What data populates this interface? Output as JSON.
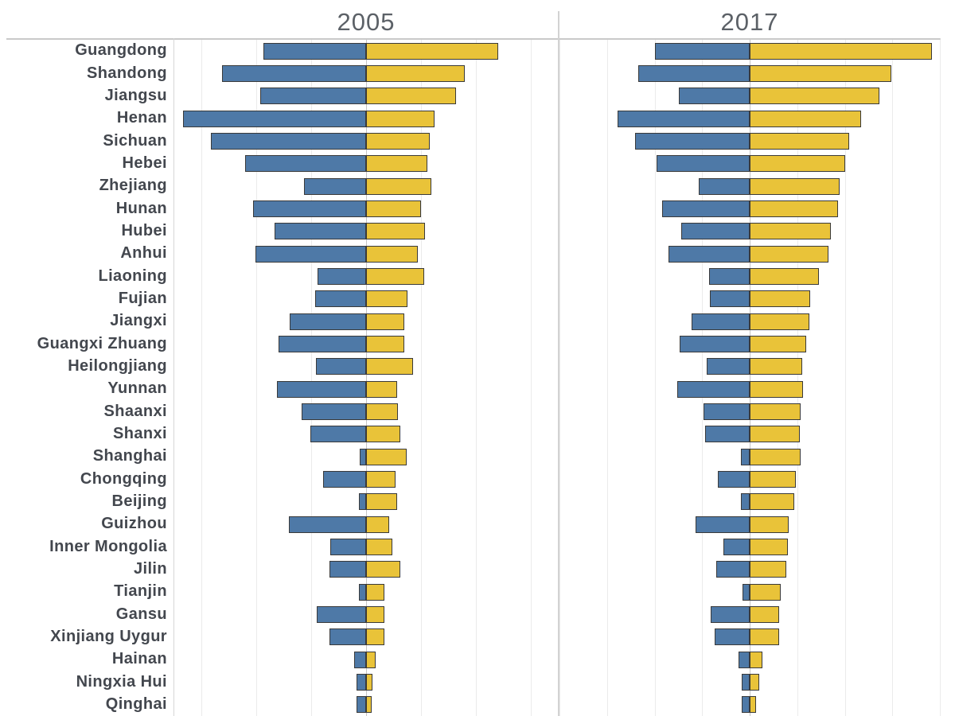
{
  "page": {
    "background": "#ffffff"
  },
  "styles": {
    "blue_bar_color": "#4e79a7",
    "yellow_bar_color": "#e9c339",
    "bar_border_color": "#3a3a3a",
    "gridline_color": "#ebebeb",
    "center_axis_color": "#c4c4c4",
    "frame_line_color": "#c9c9c9",
    "title_color": "#5c6167",
    "label_color": "#43474e"
  },
  "chart_data": {
    "type": "bar",
    "subtype": "diverging-horizontal-two-panel",
    "title": "",
    "xlabel": "",
    "ylabel": "",
    "grid": true,
    "legend": false,
    "axis_tick_labels_visible": false,
    "categories": [
      "Guangdong",
      "Shandong",
      "Jiangsu",
      "Henan",
      "Sichuan",
      "Hebei",
      "Zhejiang",
      "Hunan",
      "Hubei",
      "Anhui",
      "Liaoning",
      "Fujian",
      "Jiangxi",
      "Guangxi Zhuang",
      "Heilongjiang",
      "Yunnan",
      "Shaanxi",
      "Shanxi",
      "Shanghai",
      "Chongqing",
      "Beijing",
      "Guizhou",
      "Inner Mongolia",
      "Jilin",
      "Tianjin",
      "Gansu",
      "Xinjiang Uygur",
      "Hainan",
      "Ningxia Hui",
      "Qinghai"
    ],
    "panels": [
      {
        "title": "2005",
        "axis_max": 70,
        "gridline_step": 20,
        "series": [
          {
            "name": "blue_left",
            "direction": "left",
            "color": "#4e79a7",
            "values": [
              37.3,
              52.4,
              38.5,
              66.5,
              56.4,
              44.0,
              22.6,
              41.1,
              33.3,
              40.2,
              17.6,
              18.5,
              27.8,
              31.8,
              18.2,
              32.4,
              23.4,
              20.2,
              2.3,
              15.6,
              2.6,
              28.1,
              13.0,
              13.3,
              2.6,
              17.9,
              13.3,
              4.3,
              3.5,
              3.5
            ]
          },
          {
            "name": "yellow_right",
            "direction": "right",
            "color": "#e9c339",
            "values": [
              48.0,
              35.9,
              32.7,
              24.9,
              23.1,
              22.3,
              23.7,
              20.0,
              21.4,
              18.8,
              21.1,
              15.0,
              13.9,
              13.9,
              17.1,
              11.3,
              11.6,
              12.4,
              14.8,
              10.7,
              11.3,
              8.4,
              9.5,
              12.4,
              6.7,
              6.7,
              6.7,
              3.5,
              2.3,
              2.0
            ]
          }
        ]
      },
      {
        "title": "2017",
        "axis_max": 80,
        "gridline_step": 20,
        "series": [
          {
            "name": "blue_left",
            "direction": "left",
            "color": "#4e79a7",
            "values": [
              39.7,
              46.7,
              29.7,
              55.7,
              48.3,
              39.3,
              21.3,
              36.7,
              28.7,
              34.3,
              17.0,
              16.7,
              24.3,
              29.3,
              18.0,
              30.3,
              19.3,
              18.7,
              3.7,
              13.3,
              3.7,
              22.7,
              11.0,
              14.0,
              3.0,
              16.3,
              14.7,
              4.7,
              3.3,
              3.3
            ]
          },
          {
            "name": "yellow_right",
            "direction": "right",
            "color": "#e9c339",
            "values": [
              76.7,
              59.7,
              54.7,
              47.0,
              41.7,
              40.3,
              37.7,
              37.0,
              34.3,
              33.0,
              29.0,
              25.3,
              25.0,
              23.7,
              22.0,
              22.3,
              21.3,
              21.0,
              21.3,
              19.3,
              18.7,
              16.3,
              16.0,
              15.3,
              13.0,
              12.3,
              12.3,
              5.3,
              4.0,
              2.7
            ]
          }
        ]
      }
    ]
  }
}
